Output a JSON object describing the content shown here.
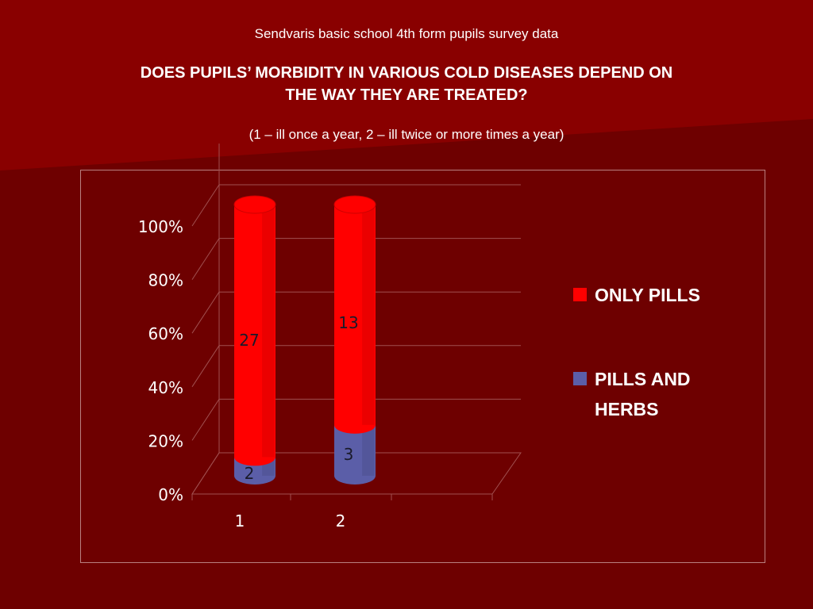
{
  "slide": {
    "subtitle": "Sendvaris basic school 4th form pupils survey data",
    "title_line1": "DOES PUPILS’ MORBIDITY IN VARIOUS COLD DISEASES DEPEND ON",
    "title_line2": "THE WAY THEY ARE TREATED?",
    "note": "(1 – ill once a year, 2 – ill twice or more times a year)"
  },
  "colors": {
    "background": "#6e0000",
    "only_pills": "#ff0000",
    "pills_and_herbs": "#5b5ea8"
  },
  "chart_data": {
    "type": "bar",
    "stacked": "percent",
    "three_d": true,
    "bar_shape": "cylinder",
    "categories": [
      "1",
      "2"
    ],
    "series": [
      {
        "name": "PILLS AND HERBS",
        "values": [
          2,
          3
        ],
        "color": "#5b5ea8"
      },
      {
        "name": "ONLY PILLS",
        "values": [
          27,
          13
        ],
        "color": "#ff0000"
      }
    ],
    "yticks": [
      "0%",
      "20%",
      "40%",
      "60%",
      "80%",
      "100%"
    ],
    "ylim": [
      0,
      100
    ],
    "grid": true,
    "legend": "right"
  },
  "legend": {
    "items": [
      {
        "label": "ONLY PILLS",
        "color": "#ff0000"
      },
      {
        "label": "PILLS AND HERBS",
        "color": "#5b5ea8"
      }
    ]
  }
}
